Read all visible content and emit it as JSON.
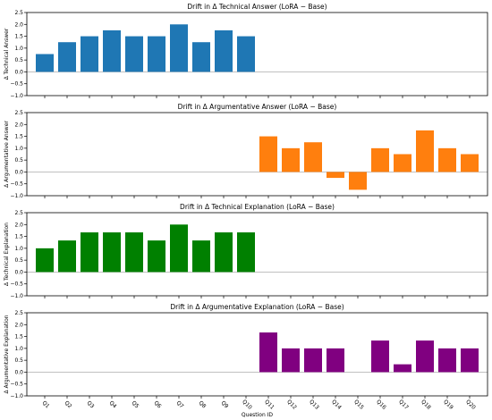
{
  "chart_data": [
    {
      "type": "bar",
      "title": "Drift in Δ Technical Answer (LoRA − Base)",
      "ylabel": "Δ Technical Answer",
      "color": "#1f77b4",
      "ylim": [
        -1.0,
        2.5
      ],
      "yticks": [
        "−1.0",
        "−0.5",
        "0.0",
        "0.5",
        "1.0",
        "1.5",
        "2.0",
        "2.5"
      ],
      "categories": [
        "Q1",
        "Q2",
        "Q3",
        "Q4",
        "Q5",
        "Q6",
        "Q7",
        "Q8",
        "Q9",
        "Q10",
        "Q11",
        "Q12",
        "Q13",
        "Q14",
        "Q15",
        "Q16",
        "Q17",
        "Q18",
        "Q19",
        "Q20"
      ],
      "values": [
        0.75,
        1.25,
        1.5,
        1.75,
        1.5,
        1.5,
        2.0,
        1.25,
        1.75,
        1.5,
        null,
        null,
        null,
        null,
        null,
        null,
        null,
        null,
        null,
        null
      ]
    },
    {
      "type": "bar",
      "title": "Drift in Δ Argumentative Answer (LoRA − Base)",
      "ylabel": "Δ Argumentative Answer",
      "color": "#ff7f0e",
      "ylim": [
        -1.0,
        2.5
      ],
      "yticks": [
        "−1.0",
        "−0.5",
        "0.0",
        "0.5",
        "1.0",
        "1.5",
        "2.0",
        "2.5"
      ],
      "categories": [
        "Q1",
        "Q2",
        "Q3",
        "Q4",
        "Q5",
        "Q6",
        "Q7",
        "Q8",
        "Q9",
        "Q10",
        "Q11",
        "Q12",
        "Q13",
        "Q14",
        "Q15",
        "Q16",
        "Q17",
        "Q18",
        "Q19",
        "Q20"
      ],
      "values": [
        null,
        null,
        null,
        null,
        null,
        null,
        null,
        null,
        null,
        null,
        1.5,
        1.0,
        1.25,
        -0.25,
        -0.75,
        1.0,
        0.75,
        1.75,
        1.0,
        0.75
      ]
    },
    {
      "type": "bar",
      "title": "Drift in Δ Technical Explanation (LoRA − Base)",
      "ylabel": "Δ Technical Explanation",
      "color": "#008000",
      "ylim": [
        -1.0,
        2.5
      ],
      "yticks": [
        "−1.0",
        "−0.5",
        "0.0",
        "0.5",
        "1.0",
        "1.5",
        "2.0",
        "2.5"
      ],
      "categories": [
        "Q1",
        "Q2",
        "Q3",
        "Q4",
        "Q5",
        "Q6",
        "Q7",
        "Q8",
        "Q9",
        "Q10",
        "Q11",
        "Q12",
        "Q13",
        "Q14",
        "Q15",
        "Q16",
        "Q17",
        "Q18",
        "Q19",
        "Q20"
      ],
      "values": [
        1.0,
        1.33,
        1.67,
        1.67,
        1.67,
        1.33,
        2.0,
        1.33,
        1.67,
        1.67,
        null,
        null,
        null,
        null,
        null,
        null,
        null,
        null,
        null,
        null
      ]
    },
    {
      "type": "bar",
      "title": "Drift in Δ Argumentative Explanation (LoRA − Base)",
      "ylabel": "Δ Argumentative Explanation",
      "xlabel": "Question ID",
      "color": "#800080",
      "ylim": [
        -1.0,
        2.5
      ],
      "yticks": [
        "−1.0",
        "−0.5",
        "0.0",
        "0.5",
        "1.0",
        "1.5",
        "2.0",
        "2.5"
      ],
      "categories": [
        "Q1",
        "Q2",
        "Q3",
        "Q4",
        "Q5",
        "Q6",
        "Q7",
        "Q8",
        "Q9",
        "Q10",
        "Q11",
        "Q12",
        "Q13",
        "Q14",
        "Q15",
        "Q16",
        "Q17",
        "Q18",
        "Q19",
        "Q20"
      ],
      "values": [
        null,
        null,
        null,
        null,
        null,
        null,
        null,
        null,
        null,
        null,
        1.67,
        1.0,
        1.0,
        1.0,
        null,
        1.33,
        0.33,
        1.33,
        1.0,
        1.0
      ]
    }
  ]
}
